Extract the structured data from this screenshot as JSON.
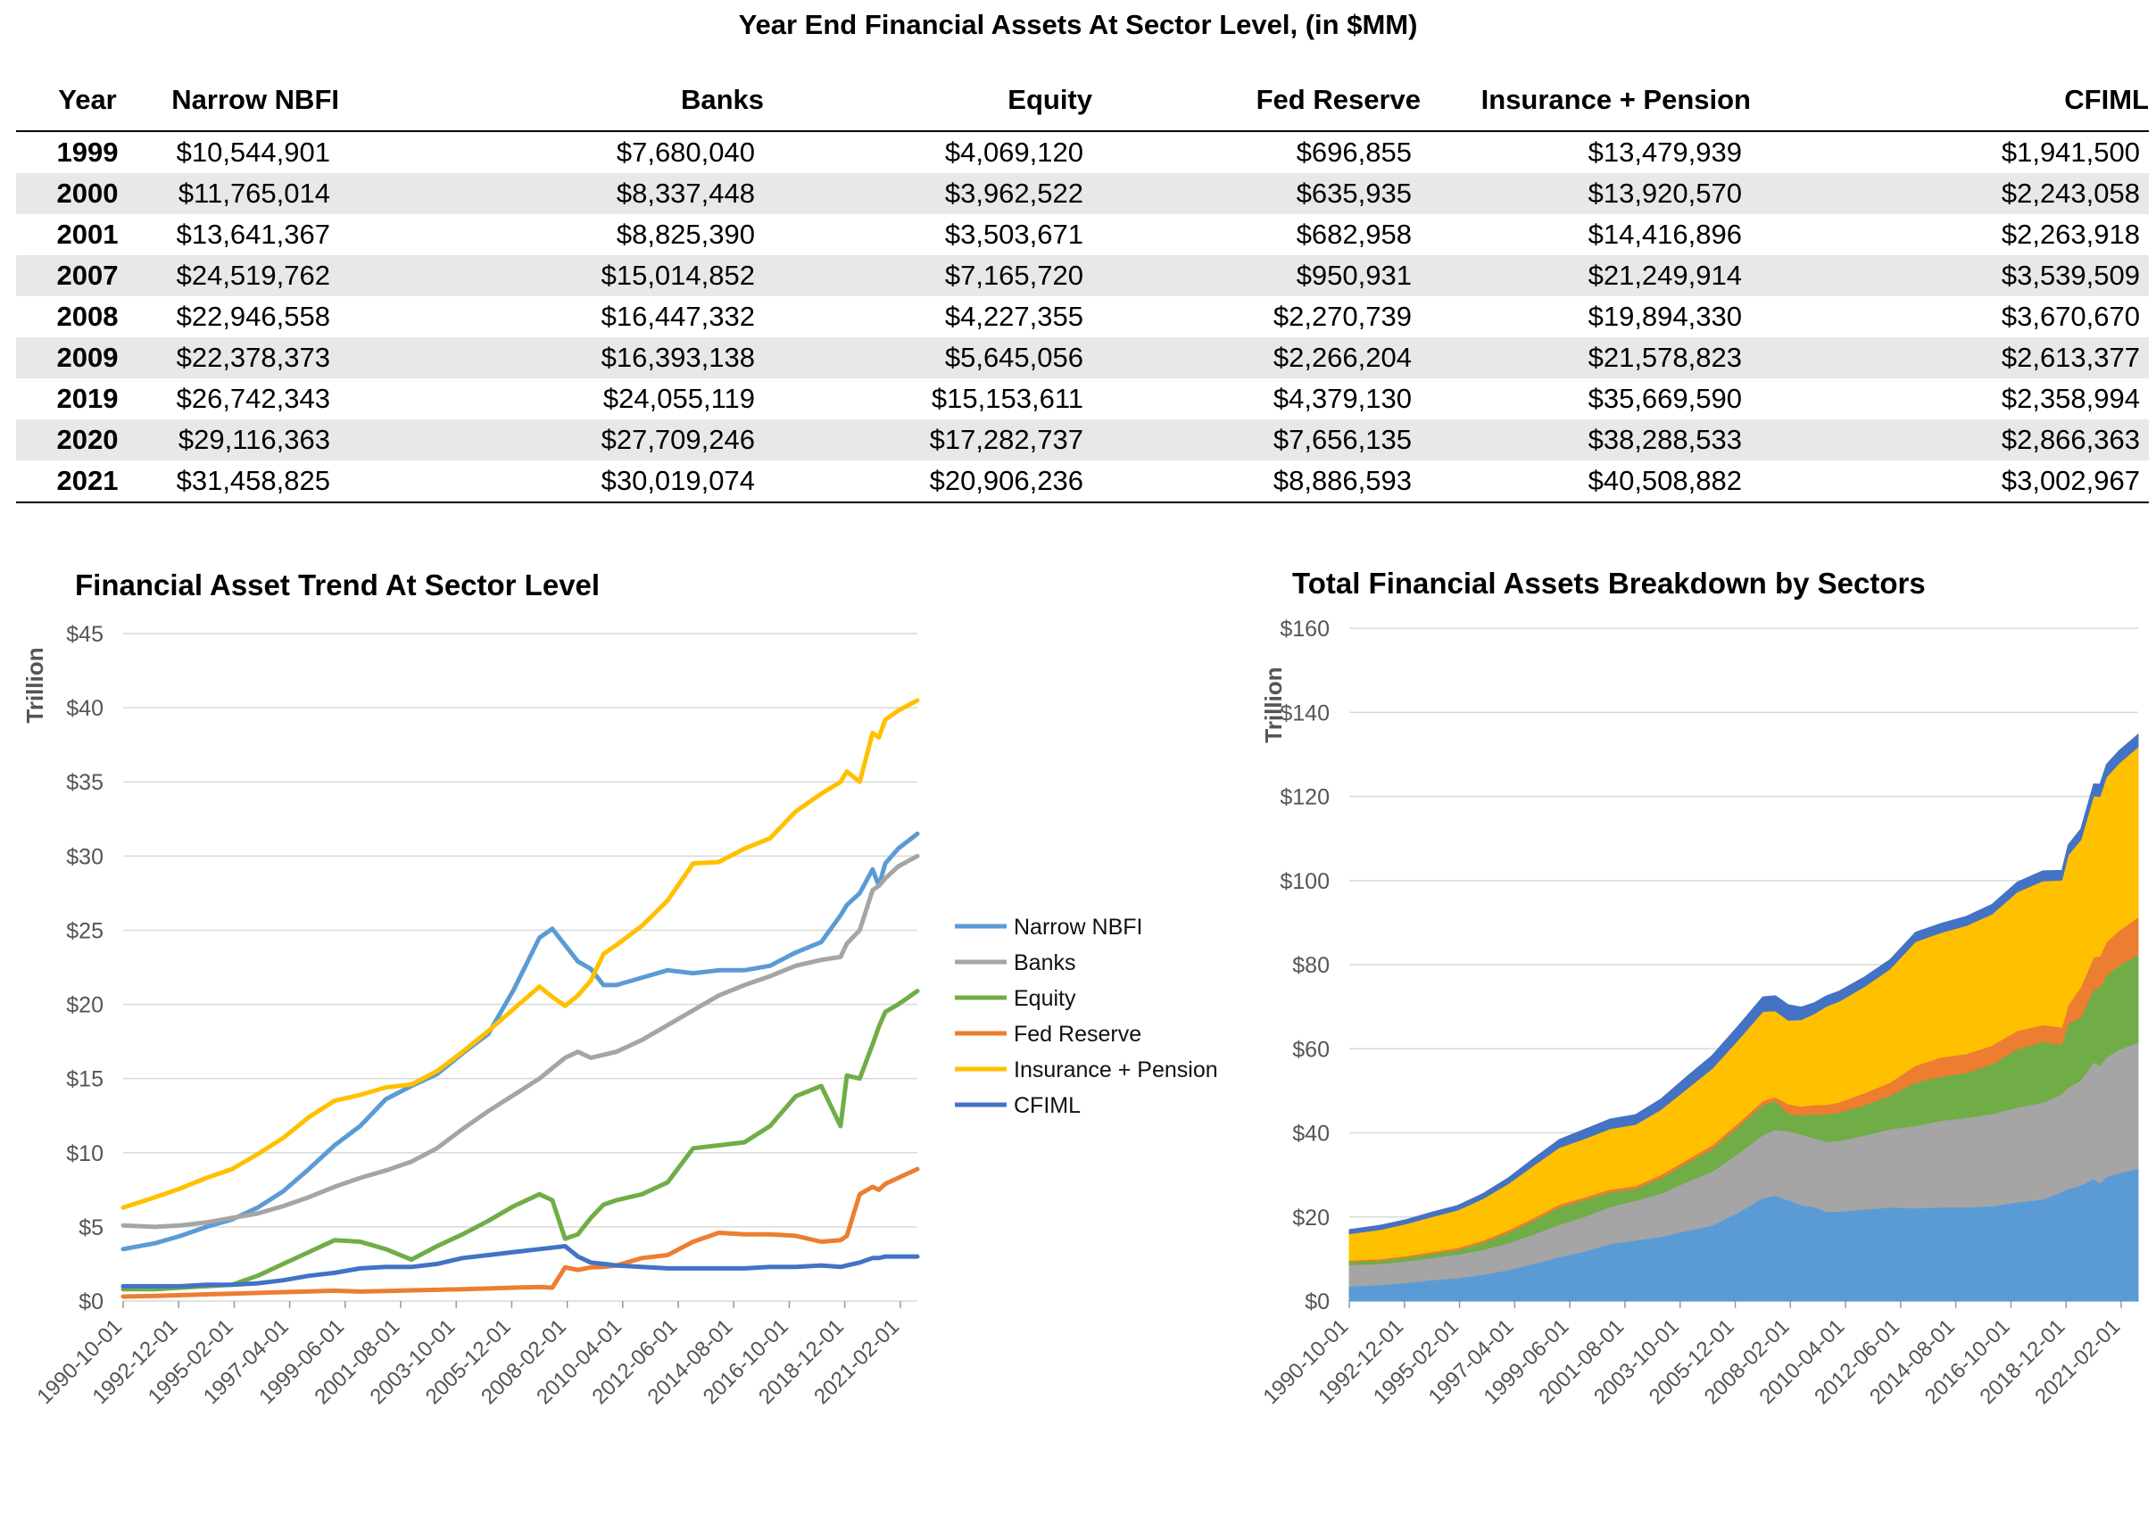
{
  "header": {
    "title": "Year End Financial Assets At Sector Level, (in $MM)"
  },
  "table": {
    "columns": [
      "Year",
      "Narrow NBFI",
      "Banks",
      "Equity",
      "Fed Reserve",
      "Insurance + Pension",
      "CFIML"
    ],
    "rows": [
      [
        "1999",
        "$10,544,901",
        "$7,680,040",
        "$4,069,120",
        "$696,855",
        "$13,479,939",
        "$1,941,500"
      ],
      [
        "2000",
        "$11,765,014",
        "$8,337,448",
        "$3,962,522",
        "$635,935",
        "$13,920,570",
        "$2,243,058"
      ],
      [
        "2001",
        "$13,641,367",
        "$8,825,390",
        "$3,503,671",
        "$682,958",
        "$14,416,896",
        "$2,263,918"
      ],
      [
        "2007",
        "$24,519,762",
        "$15,014,852",
        "$7,165,720",
        "$950,931",
        "$21,249,914",
        "$3,539,509"
      ],
      [
        "2008",
        "$22,946,558",
        "$16,447,332",
        "$4,227,355",
        "$2,270,739",
        "$19,894,330",
        "$3,670,670"
      ],
      [
        "2009",
        "$22,378,373",
        "$16,393,138",
        "$5,645,056",
        "$2,266,204",
        "$21,578,823",
        "$2,613,377"
      ],
      [
        "2019",
        "$26,742,343",
        "$24,055,119",
        "$15,153,611",
        "$4,379,130",
        "$35,669,590",
        "$2,358,994"
      ],
      [
        "2020",
        "$29,116,363",
        "$27,709,246",
        "$17,282,737",
        "$7,656,135",
        "$38,288,533",
        "$2,866,363"
      ],
      [
        "2021",
        "$31,458,825",
        "$30,019,074",
        "$20,906,236",
        "$8,886,593",
        "$40,508,882",
        "$3,002,967"
      ]
    ]
  },
  "chart_data": [
    {
      "type": "line",
      "title": "Financial Asset Trend At Sector Level",
      "xlabel": "",
      "ylabel": "Trillion",
      "ylim": [
        0,
        45
      ],
      "yticks": [
        "$0",
        "$5",
        "$10",
        "$15",
        "$20",
        "$25",
        "$30",
        "$35",
        "$40",
        "$45"
      ],
      "xticks": [
        "1990-10-01",
        "1992-12-01",
        "1995-02-01",
        "1997-04-01",
        "1999-06-01",
        "2001-08-01",
        "2003-10-01",
        "2005-12-01",
        "2008-02-01",
        "2010-04-01",
        "2012-06-01",
        "2014-08-01",
        "2016-10-01",
        "2018-12-01",
        "2021-02-01"
      ],
      "x": [
        1990.75,
        1992.0,
        1993.0,
        1994.0,
        1995.0,
        1996.0,
        1997.0,
        1998.0,
        1999.0,
        2000.0,
        2001.0,
        2002.0,
        2003.0,
        2004.0,
        2005.0,
        2006.0,
        2007.0,
        2007.5,
        2008.0,
        2008.5,
        2009.0,
        2009.5,
        2010.0,
        2011.0,
        2012.0,
        2013.0,
        2014.0,
        2015.0,
        2016.0,
        2017.0,
        2018.0,
        2018.75,
        2019.0,
        2019.5,
        2020.0,
        2020.25,
        2020.5,
        2021.0,
        2021.75
      ],
      "legend_position": "right",
      "grid": true,
      "series": [
        {
          "name": "Narrow NBFI",
          "color": "#5b9bd5",
          "values": [
            3.5,
            3.9,
            4.4,
            5.0,
            5.5,
            6.3,
            7.4,
            8.9,
            10.5,
            11.8,
            13.6,
            14.5,
            15.3,
            16.7,
            18.0,
            21.0,
            24.5,
            25.1,
            24.0,
            22.9,
            22.4,
            21.3,
            21.3,
            21.8,
            22.3,
            22.1,
            22.3,
            22.3,
            22.6,
            23.5,
            24.2,
            26.0,
            26.7,
            27.5,
            29.1,
            28.0,
            29.5,
            30.5,
            31.5
          ]
        },
        {
          "name": "Banks",
          "color": "#a5a5a5",
          "values": [
            5.1,
            5.0,
            5.1,
            5.3,
            5.6,
            5.9,
            6.4,
            7.0,
            7.7,
            8.3,
            8.8,
            9.4,
            10.3,
            11.6,
            12.8,
            13.9,
            15.0,
            15.7,
            16.4,
            16.8,
            16.4,
            16.6,
            16.8,
            17.6,
            18.6,
            19.6,
            20.6,
            21.3,
            21.9,
            22.6,
            23.0,
            23.2,
            24.1,
            25.0,
            27.7,
            28.0,
            28.5,
            29.3,
            30.0
          ]
        },
        {
          "name": "Equity",
          "color": "#70ad47",
          "values": [
            0.8,
            0.8,
            0.9,
            1.0,
            1.1,
            1.7,
            2.5,
            3.3,
            4.1,
            4.0,
            3.5,
            2.8,
            3.7,
            4.5,
            5.4,
            6.4,
            7.2,
            6.8,
            4.2,
            4.5,
            5.6,
            6.5,
            6.8,
            7.2,
            8.0,
            10.3,
            10.5,
            10.7,
            11.8,
            13.8,
            14.5,
            11.8,
            15.2,
            15.0,
            17.3,
            18.5,
            19.5,
            20.0,
            20.9
          ]
        },
        {
          "name": "Fed Reserve",
          "color": "#ed7d31",
          "values": [
            0.3,
            0.35,
            0.4,
            0.45,
            0.5,
            0.55,
            0.6,
            0.65,
            0.7,
            0.64,
            0.68,
            0.72,
            0.76,
            0.8,
            0.85,
            0.9,
            0.95,
            0.9,
            2.27,
            2.1,
            2.27,
            2.3,
            2.4,
            2.9,
            3.1,
            4.0,
            4.6,
            4.5,
            4.5,
            4.4,
            4.0,
            4.1,
            4.4,
            7.2,
            7.7,
            7.5,
            7.9,
            8.3,
            8.9
          ]
        },
        {
          "name": "Insurance + Pension",
          "color": "#ffc000",
          "values": [
            6.3,
            7.0,
            7.6,
            8.3,
            8.9,
            9.9,
            11.0,
            12.4,
            13.5,
            13.9,
            14.4,
            14.6,
            15.5,
            16.8,
            18.2,
            19.7,
            21.2,
            20.5,
            19.9,
            20.6,
            21.6,
            23.4,
            24.0,
            25.3,
            27.0,
            29.5,
            29.6,
            30.5,
            31.2,
            33.0,
            34.2,
            35.0,
            35.7,
            35.0,
            38.3,
            38.0,
            39.2,
            39.8,
            40.5
          ]
        },
        {
          "name": "CFIML",
          "color": "#4472c4",
          "values": [
            1.0,
            1.0,
            1.0,
            1.1,
            1.1,
            1.2,
            1.4,
            1.7,
            1.9,
            2.2,
            2.3,
            2.3,
            2.5,
            2.9,
            3.1,
            3.3,
            3.5,
            3.6,
            3.7,
            3.0,
            2.6,
            2.5,
            2.4,
            2.3,
            2.2,
            2.2,
            2.2,
            2.2,
            2.3,
            2.3,
            2.4,
            2.3,
            2.4,
            2.6,
            2.9,
            2.9,
            3.0,
            3.0,
            3.0
          ]
        }
      ]
    },
    {
      "type": "area",
      "stacked": true,
      "title": "Total Financial Assets Breakdown by Sectors",
      "xlabel": "",
      "ylabel": "Trillion",
      "ylim": [
        0,
        160
      ],
      "yticks": [
        "$0",
        "$20",
        "$40",
        "$60",
        "$80",
        "$100",
        "$120",
        "$140",
        "$160"
      ],
      "xticks": [
        "1990-10-01",
        "1992-12-01",
        "1995-02-01",
        "1997-04-01",
        "1999-06-01",
        "2001-08-01",
        "2003-10-01",
        "2005-12-01",
        "2008-02-01",
        "2010-04-01",
        "2012-06-01",
        "2014-08-01",
        "2016-10-01",
        "2018-12-01",
        "2021-02-01"
      ],
      "uses_series_from": 0,
      "stack_order": [
        "Narrow NBFI",
        "Banks",
        "Equity",
        "Fed Reserve",
        "Insurance + Pension",
        "CFIML"
      ]
    }
  ]
}
